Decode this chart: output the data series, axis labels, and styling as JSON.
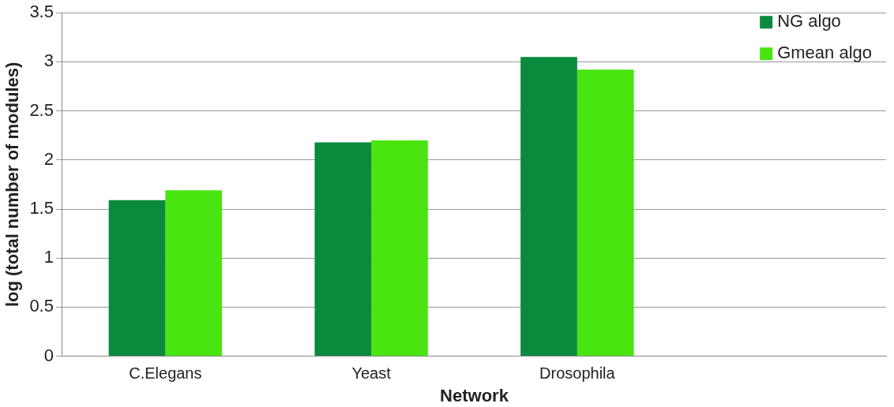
{
  "chart_data": {
    "type": "bar",
    "xlabel": "Network",
    "ylabel": "log (total number of modules)",
    "categories": [
      "C.Elegans",
      "Yeast",
      "Drosophila",
      null
    ],
    "series": [
      {
        "name": "NG algo",
        "color": "#0a8a3c",
        "values": [
          1.59,
          2.18,
          3.05,
          null
        ]
      },
      {
        "name": "Gmean algo",
        "color": "#48e510",
        "values": [
          1.69,
          2.2,
          2.92,
          null
        ]
      }
    ],
    "ylim": [
      0,
      3.5
    ],
    "yticks": [
      0,
      0.5,
      1,
      1.5,
      2,
      2.5,
      3,
      3.5
    ],
    "grid": "y",
    "legend": "top right"
  }
}
